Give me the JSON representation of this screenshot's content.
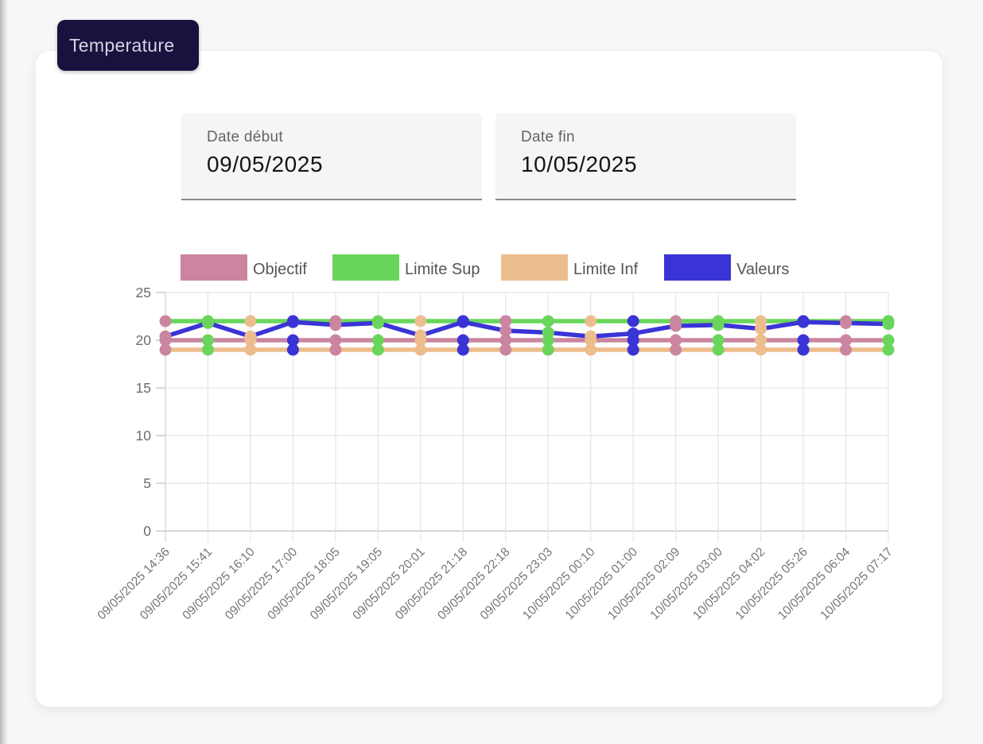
{
  "chip": {
    "label": "Temperature",
    "bg_color": "#18123f",
    "text_color": "#d6d4e2"
  },
  "filters": {
    "date_start": {
      "label": "Date début",
      "value": "09/05/2025"
    },
    "date_end": {
      "label": "Date fin",
      "value": "10/05/2025"
    }
  },
  "chart_data": {
    "type": "line",
    "title": "Temperature",
    "xlabel": "",
    "ylabel": "",
    "ylim": [
      0,
      25
    ],
    "y_ticks": [
      0,
      5,
      10,
      15,
      20,
      25
    ],
    "grid": true,
    "legend_position": "top",
    "x_labels": [
      "09/05/2025 14:36",
      "09/05/2025 15:41",
      "09/05/2025 16:10",
      "09/05/2025 17:00",
      "09/05/2025 18:05",
      "09/05/2025 19:05",
      "09/05/2025 20:01",
      "09/05/2025 21:18",
      "09/05/2025 22:18",
      "09/05/2025 23:03",
      "10/05/2025 00:10",
      "10/05/2025 01:00",
      "10/05/2025 02:09",
      "10/05/2025 03:00",
      "10/05/2025 04:02",
      "10/05/2025 05:26",
      "10/05/2025 06:04",
      "10/05/2025 07:17"
    ],
    "series": [
      {
        "name": "Objectif",
        "color": "#cb85a0",
        "values": [
          20,
          20,
          20,
          20,
          20,
          20,
          20,
          20,
          20,
          20,
          20,
          20,
          20,
          20,
          20,
          20,
          20,
          20
        ]
      },
      {
        "name": "Limite Sup",
        "color": "#69d65b",
        "values": [
          22,
          22,
          22,
          22,
          22,
          22,
          22,
          22,
          22,
          22,
          22,
          22,
          22,
          22,
          22,
          22,
          22,
          22
        ]
      },
      {
        "name": "Limite Inf",
        "color": "#ecbd8d",
        "values": [
          19,
          19,
          19,
          19,
          19,
          19,
          19,
          19,
          19,
          19,
          19,
          19,
          19,
          19,
          19,
          19,
          19,
          19
        ]
      },
      {
        "name": "Valeurs",
        "color": "#3a34d6",
        "values": [
          20.4,
          21.8,
          20.4,
          21.9,
          21.6,
          21.8,
          20.5,
          21.9,
          21.0,
          20.8,
          20.4,
          20.7,
          21.5,
          21.6,
          21.2,
          21.9,
          21.8,
          21.7
        ]
      }
    ],
    "point_color_cycle": [
      "#cb85a0",
      "#69d65b",
      "#ecbd8d",
      "#3a34d6"
    ],
    "axis_text_color": "#6b6b6b",
    "legend_text_color": "#555555"
  }
}
